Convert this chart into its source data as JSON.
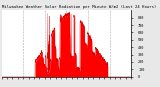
{
  "title": "Milwaukee Weather Solar Radiation per Minute W/m2 (Last 24 Hours)",
  "bg_color": "#e8e8e8",
  "plot_bg": "#ffffff",
  "fill_color": "#ff0000",
  "line_color": "#dd0000",
  "grid_color": "#888888",
  "ylim": [
    0,
    900
  ],
  "xlim": [
    0,
    1440
  ],
  "num_points": 1440,
  "title_fontsize": 2.8,
  "tick_fontsize": 2.5,
  "yticks": [
    0,
    100,
    200,
    300,
    400,
    500,
    600,
    700,
    800
  ],
  "num_x_ticks": 25,
  "num_grid_lines": 5
}
